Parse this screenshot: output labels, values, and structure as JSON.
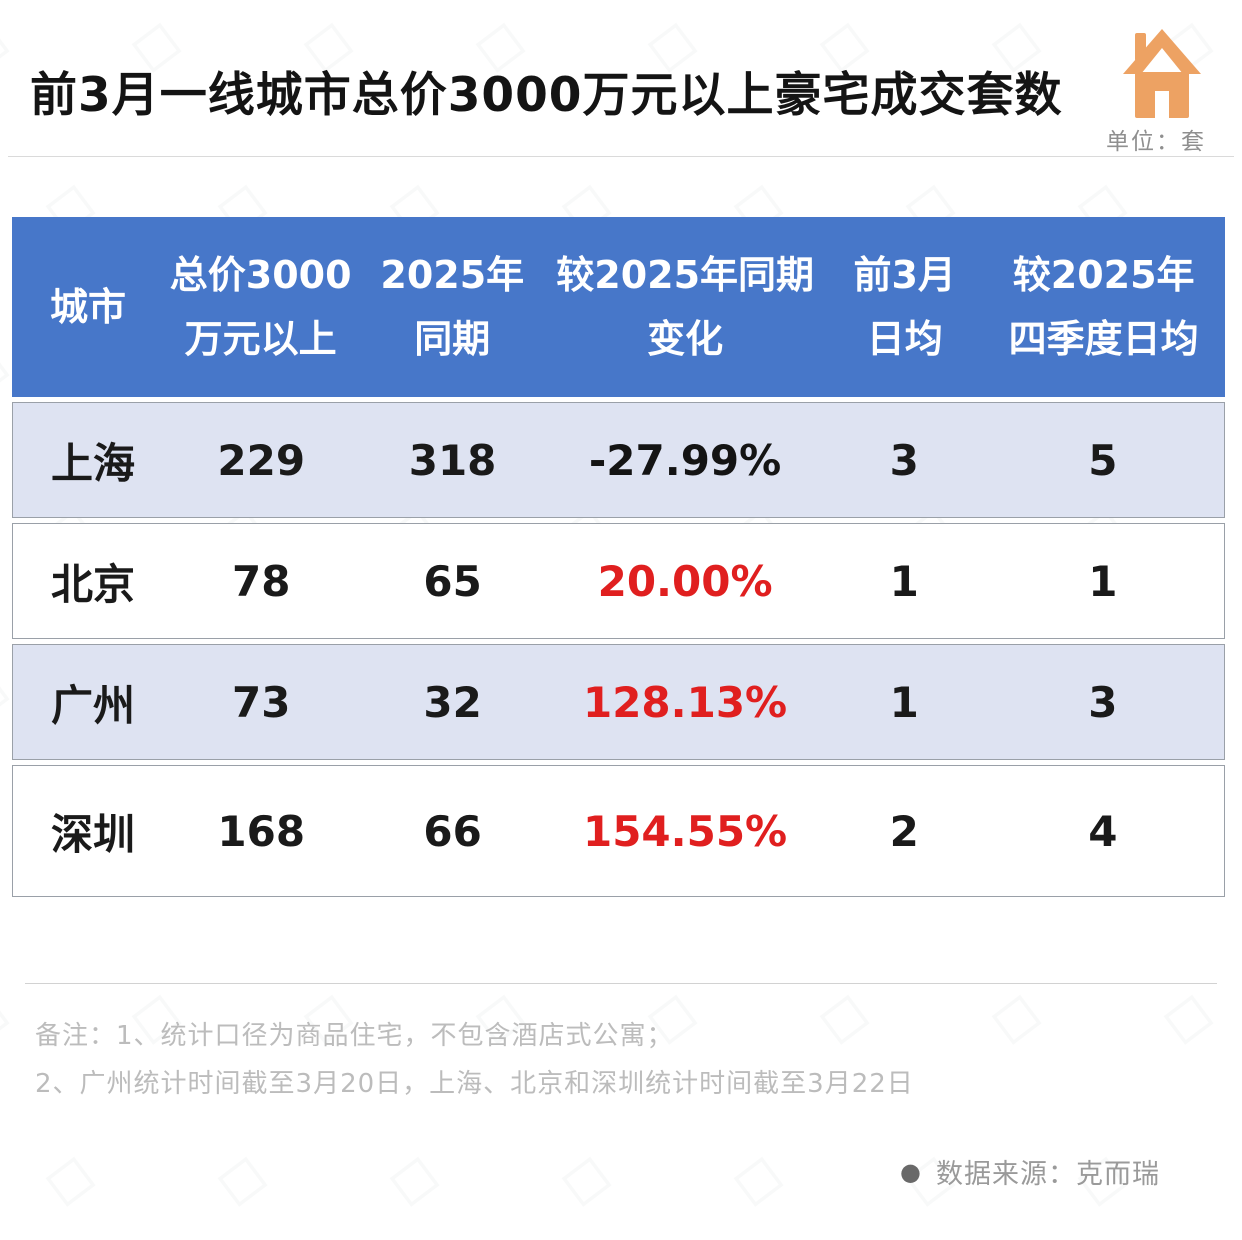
{
  "header": {
    "title": "前3月一线城市总价3000万元以上豪宅成交套数",
    "unit_label": "单位：套",
    "icon": "house-icon",
    "icon_color": "#eda263"
  },
  "table": {
    "colors": {
      "header_bg": "#4777c9",
      "alt_row_bg": "#dee3f2",
      "row_border": "#9aa0a8",
      "increase_text": "#e01f1f",
      "decrease_text": "#141414"
    },
    "columns": [
      {
        "line1": "城市",
        "line2": ""
      },
      {
        "line1": "总价3000",
        "line2": "万元以上"
      },
      {
        "line1": "2025年",
        "line2": "同期"
      },
      {
        "line1": "较2025年同期",
        "line2": "变化"
      },
      {
        "line1": "前3月",
        "line2": "日均"
      },
      {
        "line1": "较2025年",
        "line2": "四季度日均"
      }
    ],
    "rows": [
      {
        "city": "上海",
        "total_3000w_plus": "229",
        "same_period_2025": "318",
        "change": "-27.99%",
        "change_class": "change-down",
        "daily_avg_3m": "3",
        "vs_q4_daily_avg": "5"
      },
      {
        "city": "北京",
        "total_3000w_plus": "78",
        "same_period_2025": "65",
        "change": "20.00%",
        "change_class": "change-up",
        "daily_avg_3m": "1",
        "vs_q4_daily_avg": "1"
      },
      {
        "city": "广州",
        "total_3000w_plus": "73",
        "same_period_2025": "32",
        "change": "128.13%",
        "change_class": "change-up",
        "daily_avg_3m": "1",
        "vs_q4_daily_avg": "3"
      },
      {
        "city": "深圳",
        "total_3000w_plus": "168",
        "same_period_2025": "66",
        "change": "154.55%",
        "change_class": "change-up",
        "daily_avg_3m": "2",
        "vs_q4_daily_avg": "4"
      }
    ]
  },
  "notes": {
    "line1": "备注：1、统计口径为商品住宅，不包含酒店式公寓；",
    "line2": "2、广州统计时间截至3月20日，上海、北京和深圳统计时间截至3月22日"
  },
  "source": {
    "bullet": "●",
    "label": "数据来源：克而瑞"
  },
  "chart_data": {
    "type": "table",
    "title": "前3月一线城市总价3000万元以上豪宅成交套数",
    "unit": "套",
    "columns": [
      "城市",
      "总价3000万元以上",
      "2025年同期",
      "较2025年同期变化",
      "前3月日均",
      "较2025年四季度日均"
    ],
    "rows": [
      [
        "上海",
        229,
        318,
        "-27.99%",
        3,
        5
      ],
      [
        "北京",
        78,
        65,
        "20.00%",
        1,
        1
      ],
      [
        "广州",
        73,
        32,
        "128.13%",
        1,
        3
      ],
      [
        "深圳",
        168,
        66,
        "154.55%",
        2,
        4
      ]
    ],
    "highlight": "正增长百分比为红色，负增长为黑色",
    "notes": [
      "备注：1、统计口径为商品住宅，不包含酒店式公寓；",
      "2、广州统计时间截至3月20日，上海、北京和深圳统计时间截至3月22日"
    ],
    "source": "克而瑞"
  }
}
